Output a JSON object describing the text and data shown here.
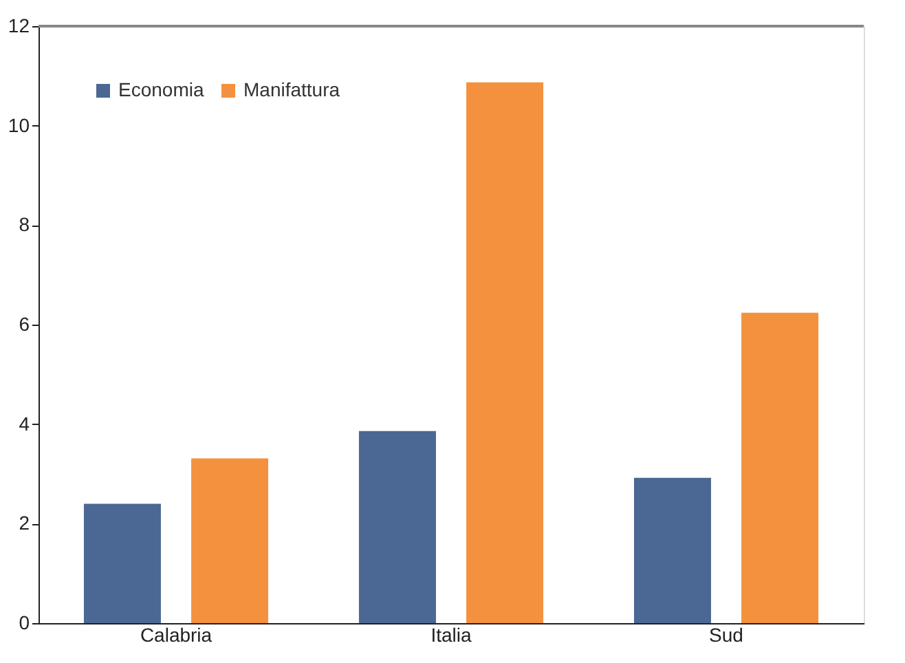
{
  "chart_data": {
    "type": "bar",
    "categories": [
      "Calabria",
      "Italia",
      "Sud"
    ],
    "series": [
      {
        "name": "Economia",
        "color": "#4a6893",
        "values": [
          2.4,
          3.86,
          2.92
        ]
      },
      {
        "name": "Manifattura",
        "color": "#f4913e",
        "values": [
          3.31,
          10.87,
          6.24
        ]
      }
    ],
    "ylim": [
      0,
      12
    ],
    "yticks": [
      0,
      2,
      4,
      6,
      8,
      10,
      12
    ],
    "grid": false,
    "legend": "top left"
  }
}
